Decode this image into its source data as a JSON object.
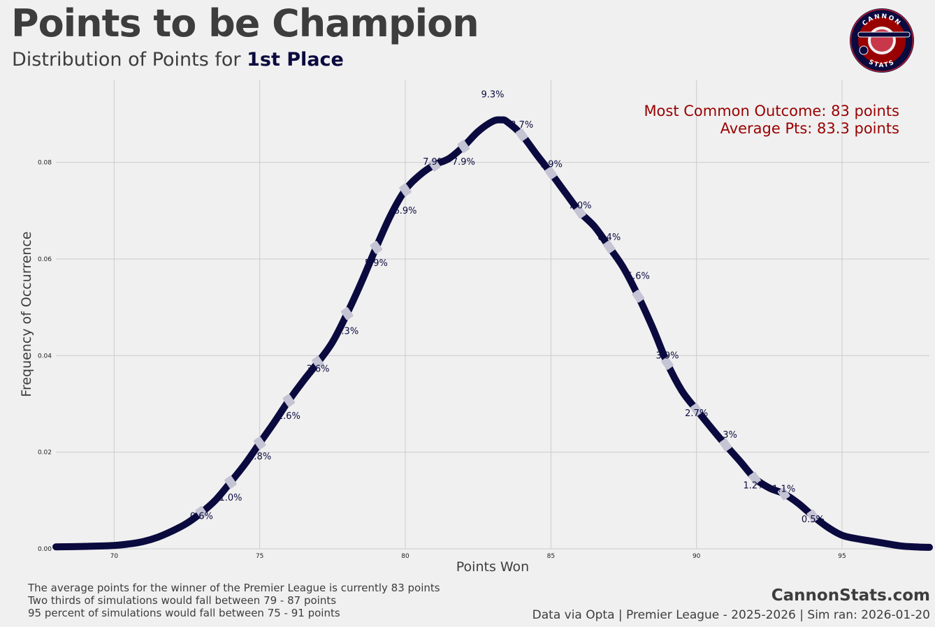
{
  "header": {
    "title": "Points to be Champion",
    "subtitle_prefix": "Distribution of Points for ",
    "subtitle_highlight": "1st Place"
  },
  "logo": {
    "top_text": "CANNON",
    "bottom_text": "STATS"
  },
  "annotations": {
    "most_common": "Most Common Outcome: 83 points",
    "average": "Average Pts: 83.3 points"
  },
  "footer": {
    "notes": [
      "The average points for the winner of the Premier League is currently 83 points",
      "Two thirds of simulations would fall between 79 - 87 points",
      "95 percent of simulations would fall between 75 - 91 points"
    ],
    "brand": "CannonStats.com",
    "source": "Data via Opta | Premier League - 2025-2026 | Sim ran: 2026-01-20"
  },
  "colors": {
    "line": "#0b0a3f",
    "accent": "#990000",
    "text": "#3d3d3d",
    "background": "#f0f0f0"
  },
  "chart_data": {
    "type": "line",
    "title": "Points to be Champion",
    "xlabel": "Points Won",
    "ylabel": "Frequency of Occurrence",
    "xlim": [
      68,
      98
    ],
    "ylim": [
      0,
      0.097
    ],
    "xticks": [
      70,
      75,
      80,
      85,
      90,
      95
    ],
    "xtick_labels": [
      "70",
      "75",
      "80",
      "85",
      "90",
      "95"
    ],
    "yticks": [
      0,
      0.02,
      0.04,
      0.06,
      0.08
    ],
    "ytick_labels": [
      "0.00",
      "0.02",
      "0.04",
      "0.06",
      "0.08"
    ],
    "series": [
      {
        "name": "Points density",
        "x": [
          68,
          69,
          70,
          70.5,
          71,
          71.5,
          72,
          72.5,
          73,
          73.5,
          74,
          74.5,
          75,
          75.5,
          76,
          76.5,
          77,
          77.5,
          78,
          78.5,
          79,
          79.5,
          80,
          80.5,
          81,
          81.5,
          82,
          82.5,
          83,
          83.3,
          83.5,
          84,
          84.5,
          85,
          85.5,
          86,
          86.5,
          87,
          87.5,
          88,
          88.5,
          89,
          89.5,
          90,
          90.5,
          91,
          91.5,
          92,
          92.5,
          93,
          93.5,
          94,
          94.5,
          95,
          95.5,
          96,
          96.5,
          97,
          97.5,
          98
        ],
        "y": [
          0.0004,
          0.0005,
          0.0007,
          0.001,
          0.0015,
          0.0024,
          0.0037,
          0.0053,
          0.0075,
          0.0102,
          0.0138,
          0.0176,
          0.0219,
          0.0262,
          0.0307,
          0.0348,
          0.0386,
          0.0428,
          0.0487,
          0.0553,
          0.0624,
          0.0691,
          0.0743,
          0.0774,
          0.0795,
          0.0808,
          0.0833,
          0.0864,
          0.0885,
          0.0888,
          0.0884,
          0.0857,
          0.0817,
          0.0778,
          0.0737,
          0.0697,
          0.0667,
          0.0625,
          0.0581,
          0.0523,
          0.0457,
          0.0384,
          0.0327,
          0.0288,
          0.0251,
          0.0215,
          0.0181,
          0.0146,
          0.0126,
          0.0114,
          0.0094,
          0.0068,
          0.0045,
          0.0028,
          0.0021,
          0.0016,
          0.0011,
          0.0006,
          0.0004,
          0.0003
        ]
      }
    ],
    "point_labels": [
      {
        "x": 73,
        "y": 0.0069,
        "label": "0.6%"
      },
      {
        "x": 74,
        "y": 0.0107,
        "label": "1.0%"
      },
      {
        "x": 75,
        "y": 0.0192,
        "label": "1.8%"
      },
      {
        "x": 76,
        "y": 0.0276,
        "label": "2.6%"
      },
      {
        "x": 77,
        "y": 0.0374,
        "label": "3.6%"
      },
      {
        "x": 78,
        "y": 0.0452,
        "label": "4.3%"
      },
      {
        "x": 79,
        "y": 0.0593,
        "label": "5.9%"
      },
      {
        "x": 80,
        "y": 0.0701,
        "label": "6.9%"
      },
      {
        "x": 81,
        "y": 0.0802,
        "label": "7.9%"
      },
      {
        "x": 82,
        "y": 0.0802,
        "label": "7.9%"
      },
      {
        "x": 83,
        "y": 0.0942,
        "label": "9.3%"
      },
      {
        "x": 84,
        "y": 0.0879,
        "label": "8.7%"
      },
      {
        "x": 85,
        "y": 0.0797,
        "label": "7.9%"
      },
      {
        "x": 86,
        "y": 0.0712,
        "label": "7.0%"
      },
      {
        "x": 87,
        "y": 0.0646,
        "label": "6.4%"
      },
      {
        "x": 88,
        "y": 0.0566,
        "label": "5.6%"
      },
      {
        "x": 89,
        "y": 0.0401,
        "label": "3.9%"
      },
      {
        "x": 90,
        "y": 0.0282,
        "label": "2.7%"
      },
      {
        "x": 91,
        "y": 0.0237,
        "label": "2.3%"
      },
      {
        "x": 92,
        "y": 0.0132,
        "label": "1.2%"
      },
      {
        "x": 93,
        "y": 0.0125,
        "label": "1.1%"
      },
      {
        "x": 94,
        "y": 0.0062,
        "label": "0.5%"
      }
    ]
  }
}
